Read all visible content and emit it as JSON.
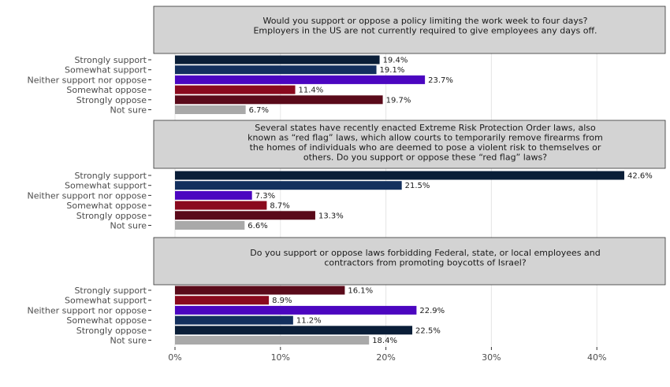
{
  "chart_data": {
    "type": "bar",
    "orientation": "horizontal",
    "categories": [
      "Strongly support",
      "Somewhat support",
      "Neither support nor oppose",
      "Somewhat oppose",
      "Strongly oppose",
      "Not sure"
    ],
    "xlim": [
      0,
      45
    ],
    "x_ticks": [
      "0%",
      "10%",
      "20%",
      "30%",
      "40%"
    ],
    "grid": true,
    "legend": "none",
    "panels": [
      {
        "title_lines": [
          "Would you support or oppose a policy limiting the work week to four days?",
          "Employers in the US are not currently required to give employees any days off."
        ],
        "labels": [
          "Strongly support",
          "Somewhat support",
          "Neither support nor oppose",
          "Somewhat oppose",
          "Strongly oppose",
          "Not sure"
        ],
        "values": [
          19.4,
          19.1,
          23.7,
          11.4,
          19.7,
          6.7
        ],
        "value_labels": [
          "19.4%",
          "19.1%",
          "23.7%",
          "11.4%",
          "19.7%",
          "6.7%"
        ],
        "colors": [
          "#0a1e38",
          "#13305e",
          "#4b06c0",
          "#8a0a1e",
          "#5a0a1a",
          "#a9a9a9"
        ]
      },
      {
        "title_lines": [
          "Several states have recently enacted Extreme Risk Protection Order laws, also",
          "known as “red flag” laws, which allow courts to temporarily remove firearms from",
          "the homes of individuals who are deemed to pose a violent risk to themselves or",
          "others. Do you support or oppose these “red flag” laws?"
        ],
        "labels": [
          "Strongly support",
          "Somewhat support",
          "Neither support nor oppose",
          "Somewhat oppose",
          "Strongly oppose",
          "Not sure"
        ],
        "values": [
          42.6,
          21.5,
          7.3,
          8.7,
          13.3,
          6.6
        ],
        "value_labels": [
          "42.6%",
          "21.5%",
          "7.3%",
          "8.7%",
          "13.3%",
          "6.6%"
        ],
        "colors": [
          "#0a1e38",
          "#13305e",
          "#4b06c0",
          "#8a0a1e",
          "#5a0a1a",
          "#a9a9a9"
        ]
      },
      {
        "title_lines": [
          "Do you support or oppose laws forbidding Federal, state, or local employees and",
          "contractors from promoting boycotts of Israel?"
        ],
        "labels": [
          "Strongly support",
          "Somewhat support",
          "Neither support nor oppose",
          "Somewhat oppose",
          "Strongly oppose",
          "Not sure"
        ],
        "values": [
          16.1,
          8.9,
          22.9,
          11.2,
          22.5,
          18.4
        ],
        "value_labels": [
          "16.1%",
          "8.9%",
          "22.9%",
          "11.2%",
          "22.5%",
          "18.4%"
        ],
        "colors": [
          "#5a0a1a",
          "#8a0a1e",
          "#4b06c0",
          "#13305e",
          "#0a1e38",
          "#a9a9a9"
        ]
      }
    ]
  }
}
